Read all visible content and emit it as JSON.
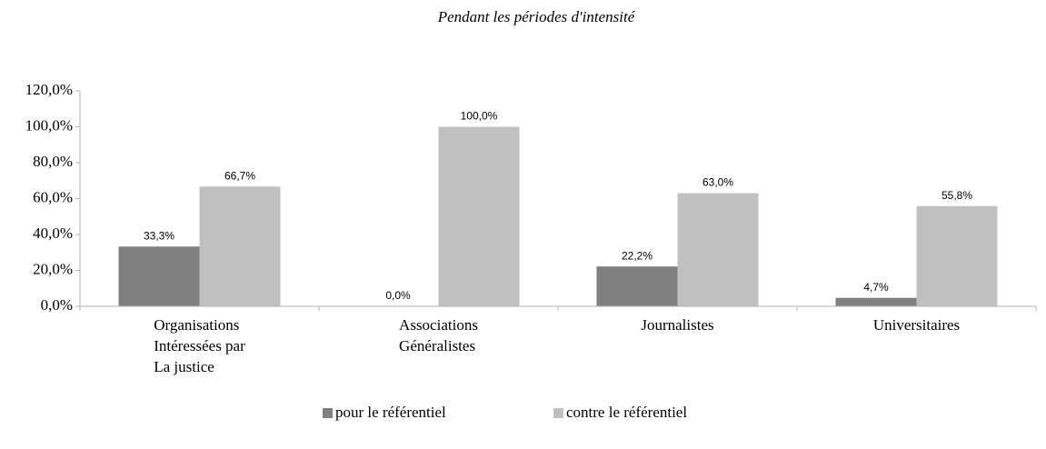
{
  "chart_data": {
    "type": "bar",
    "title": "Pendant les périodes d'intensité",
    "categories": [
      "Organisations\nIntéressées par\nLa justice",
      "Associations\nGénéralistes",
      "Journalistes",
      "Universitaires"
    ],
    "series": [
      {
        "name": "pour le référentiel",
        "color": "#808080",
        "values": [
          33.3,
          0,
          22.2,
          4.7
        ],
        "value_labels": [
          "33,3%",
          "0,0%",
          "22,2%",
          "4,7%"
        ]
      },
      {
        "name": "contre le référentiel",
        "color": "#c0c0c0",
        "values": [
          66.7,
          100,
          63,
          55.8
        ],
        "value_labels": [
          "66,7%",
          "100,0%",
          "63,0%",
          "55,8%"
        ]
      }
    ],
    "ylim": [
      0,
      120
    ],
    "yticks": [
      {
        "value": 0,
        "label": "0,0%"
      },
      {
        "value": 20,
        "label": "20,0%"
      },
      {
        "value": 40,
        "label": "40,0%"
      },
      {
        "value": 60,
        "label": "60,0%"
      },
      {
        "value": 80,
        "label": "80,0%"
      },
      {
        "value": 100,
        "label": "100,0%"
      },
      {
        "value": 120,
        "label": "120,0%"
      }
    ],
    "grid": false,
    "legend": "bottom"
  }
}
